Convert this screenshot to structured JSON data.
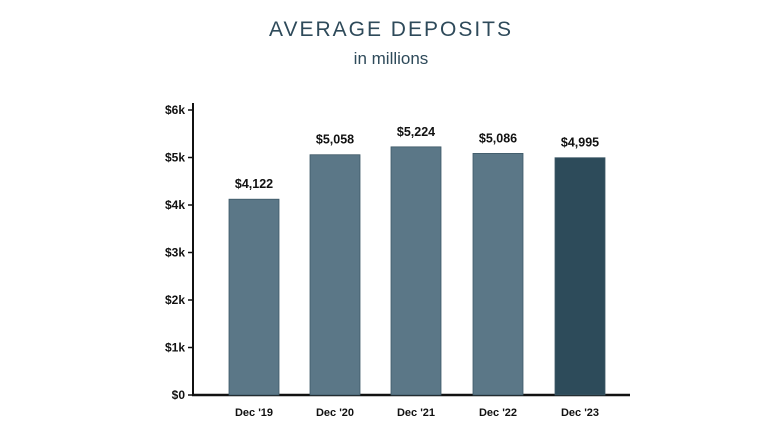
{
  "chart_data": {
    "type": "bar",
    "title": "AVERAGE DEPOSITS",
    "subtitle": "in millions",
    "categories": [
      "Dec '19",
      "Dec '20",
      "Dec '21",
      "Dec '22",
      "Dec '23"
    ],
    "values": [
      4122,
      5058,
      5224,
      5086,
      4995
    ],
    "value_labels": [
      "$4,122",
      "$5,058",
      "$5,224",
      "$5,086",
      "$4,995"
    ],
    "ylim": [
      0,
      6000
    ],
    "yticks": [
      0,
      1000,
      2000,
      3000,
      4000,
      5000,
      6000
    ],
    "ytick_labels": [
      "$0",
      "$1k",
      "$2k",
      "$3k",
      "$4k",
      "$5k",
      "$6k"
    ],
    "xlabel": "",
    "ylabel": "",
    "grid": false,
    "colors": [
      "#5b7787",
      "#5b7787",
      "#5b7787",
      "#5b7787",
      "#2d4b5a"
    ]
  }
}
